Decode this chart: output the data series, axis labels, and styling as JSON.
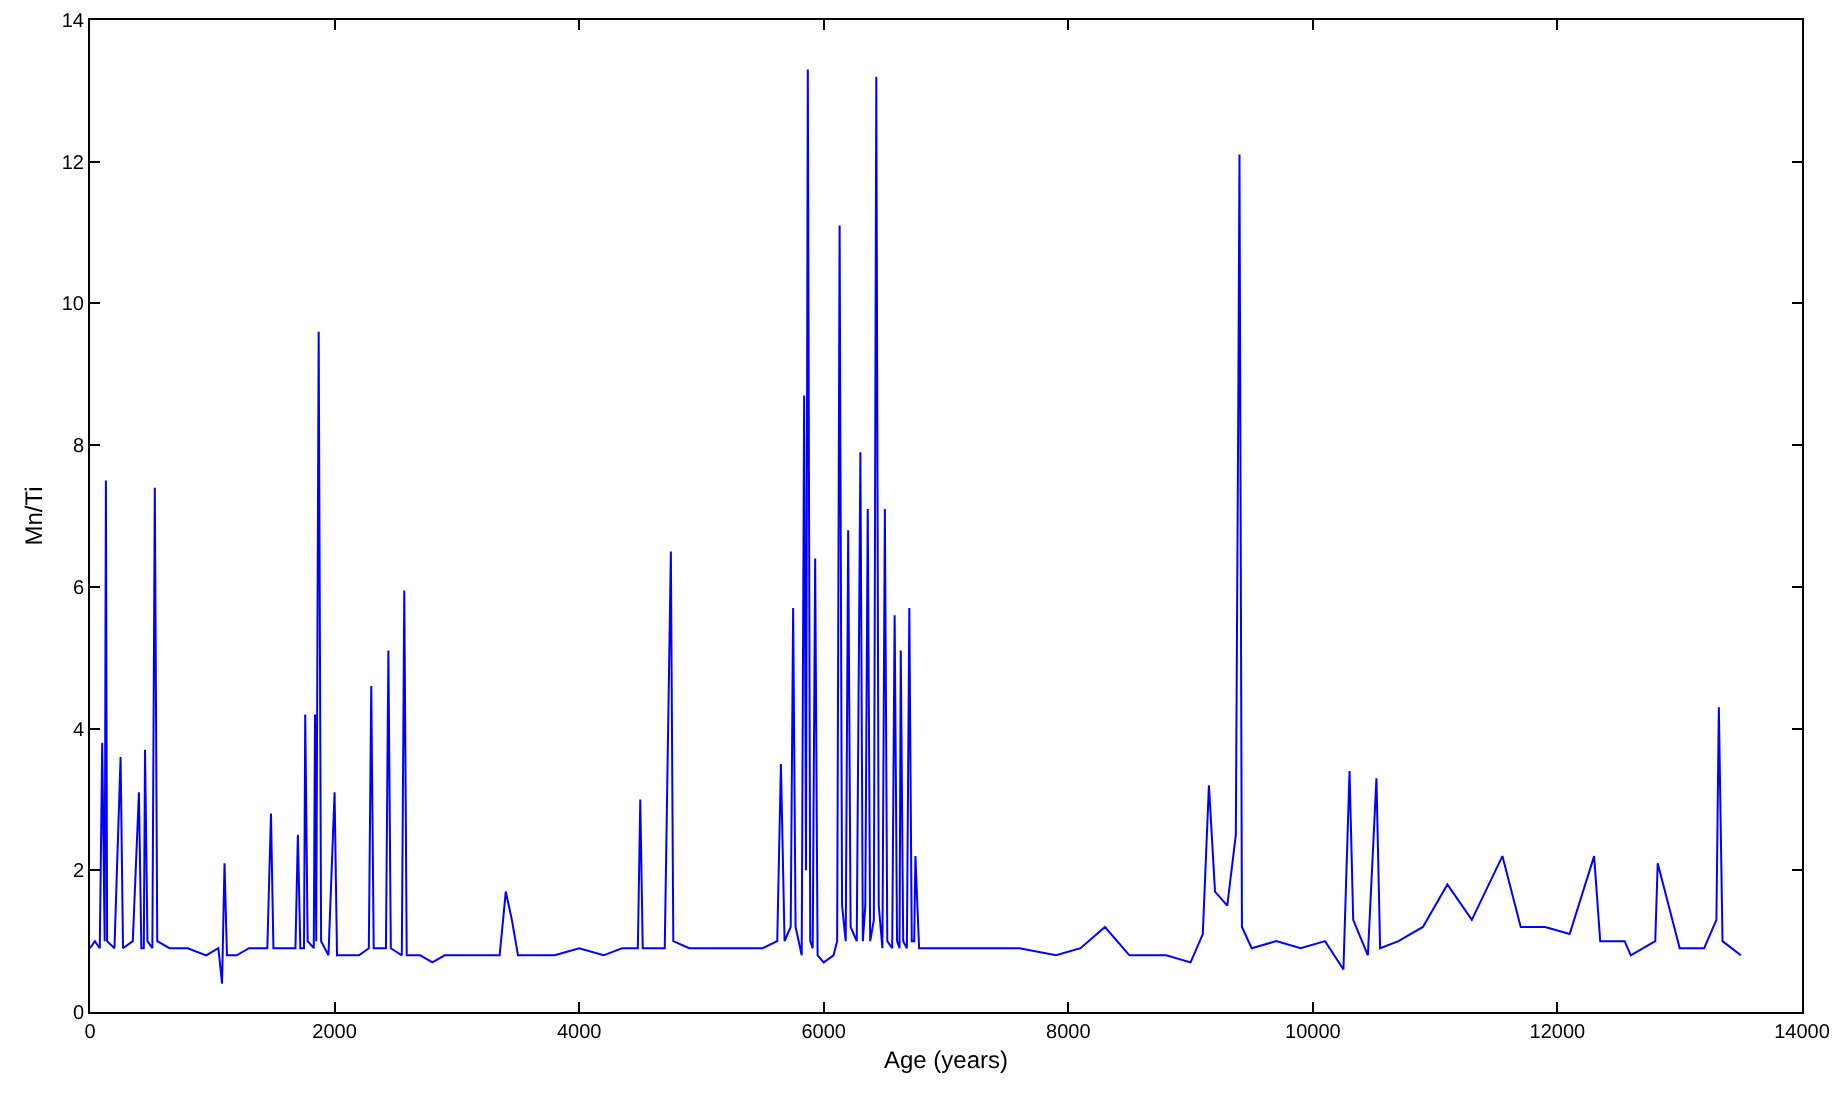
{
  "chart_data": {
    "type": "line",
    "xlabel": "Age (years)",
    "ylabel": "Mn/Ti",
    "xlim": [
      0,
      14000
    ],
    "ylim": [
      0,
      14
    ],
    "xticks": [
      0,
      2000,
      4000,
      6000,
      8000,
      10000,
      12000,
      14000
    ],
    "yticks": [
      0,
      2,
      4,
      6,
      8,
      10,
      12,
      14
    ],
    "marker": "none",
    "line_style": "solid",
    "series": [
      {
        "color": "#0000ff",
        "x": [
          0,
          40,
          80,
          100,
          120,
          130,
          140,
          200,
          250,
          270,
          350,
          400,
          420,
          440,
          450,
          470,
          510,
          530,
          550,
          650,
          800,
          950,
          1050,
          1080,
          1100,
          1120,
          1200,
          1300,
          1450,
          1480,
          1500,
          1600,
          1680,
          1700,
          1720,
          1750,
          1760,
          1780,
          1830,
          1840,
          1850,
          1870,
          1890,
          1950,
          2000,
          2020,
          2100,
          2200,
          2280,
          2300,
          2320,
          2420,
          2440,
          2460,
          2550,
          2570,
          2590,
          2700,
          2800,
          2900,
          3000,
          3100,
          3200,
          3350,
          3400,
          3450,
          3500,
          3600,
          3800,
          4000,
          4200,
          4350,
          4480,
          4500,
          4520,
          4700,
          4750,
          4770,
          4900,
          5100,
          5300,
          5500,
          5620,
          5650,
          5680,
          5730,
          5750,
          5770,
          5820,
          5840,
          5855,
          5870,
          5890,
          5910,
          5930,
          5950,
          6000,
          6080,
          6110,
          6130,
          6150,
          6180,
          6200,
          6220,
          6270,
          6300,
          6320,
          6340,
          6360,
          6380,
          6410,
          6430,
          6450,
          6480,
          6500,
          6520,
          6560,
          6580,
          6600,
          6620,
          6630,
          6650,
          6680,
          6700,
          6720,
          6740,
          6750,
          6780,
          7000,
          7300,
          7600,
          7900,
          8100,
          8300,
          8500,
          8800,
          9000,
          9100,
          9150,
          9200,
          9300,
          9370,
          9390,
          9400,
          9420,
          9500,
          9700,
          9900,
          10100,
          10250,
          10300,
          10330,
          10450,
          10520,
          10550,
          10700,
          10900,
          11100,
          11300,
          11550,
          11700,
          11900,
          12100,
          12300,
          12350,
          12550,
          12600,
          12800,
          12820,
          13000,
          13200,
          13300,
          13320,
          13350,
          13500
        ],
        "values": [
          0.9,
          1.0,
          0.9,
          3.8,
          1.0,
          7.5,
          1.0,
          0.9,
          3.6,
          0.9,
          1.0,
          3.1,
          0.9,
          0.9,
          3.7,
          1.0,
          0.9,
          7.4,
          1.0,
          0.9,
          0.9,
          0.8,
          0.9,
          0.4,
          2.1,
          0.8,
          0.8,
          0.9,
          0.9,
          2.8,
          0.9,
          0.9,
          0.9,
          2.5,
          0.9,
          0.9,
          4.2,
          1.0,
          0.9,
          4.2,
          1.0,
          9.6,
          1.0,
          0.8,
          3.1,
          0.8,
          0.8,
          0.8,
          0.9,
          4.6,
          0.9,
          0.9,
          5.1,
          0.9,
          0.8,
          5.95,
          0.8,
          0.8,
          0.7,
          0.8,
          0.8,
          0.8,
          0.8,
          0.8,
          1.7,
          1.3,
          0.8,
          0.8,
          0.8,
          0.9,
          0.8,
          0.9,
          0.9,
          3.0,
          0.9,
          0.9,
          6.5,
          1.0,
          0.9,
          0.9,
          0.9,
          0.9,
          1.0,
          3.5,
          1.0,
          1.2,
          5.7,
          1.2,
          0.8,
          8.7,
          2.0,
          13.3,
          1.0,
          0.9,
          6.4,
          0.8,
          0.7,
          0.8,
          1.0,
          11.1,
          1.5,
          1.0,
          6.8,
          1.2,
          1.0,
          7.9,
          1.0,
          1.5,
          7.1,
          1.0,
          1.3,
          13.2,
          1.5,
          0.9,
          7.1,
          1.0,
          0.9,
          5.6,
          1.0,
          0.9,
          5.1,
          1.0,
          0.9,
          5.7,
          1.0,
          1.0,
          2.2,
          0.9,
          0.9,
          0.9,
          0.9,
          0.8,
          0.9,
          1.2,
          0.8,
          0.8,
          0.7,
          1.1,
          3.2,
          1.7,
          1.5,
          2.5,
          8.5,
          12.1,
          1.2,
          0.9,
          1.0,
          0.9,
          1.0,
          0.6,
          3.4,
          1.3,
          0.8,
          3.3,
          0.9,
          1.0,
          1.2,
          1.8,
          1.3,
          2.2,
          1.2,
          1.2,
          1.1,
          2.2,
          1.0,
          1.0,
          0.8,
          1.0,
          2.1,
          0.9,
          0.9,
          1.3,
          4.3,
          1.0,
          0.8
        ]
      }
    ]
  }
}
